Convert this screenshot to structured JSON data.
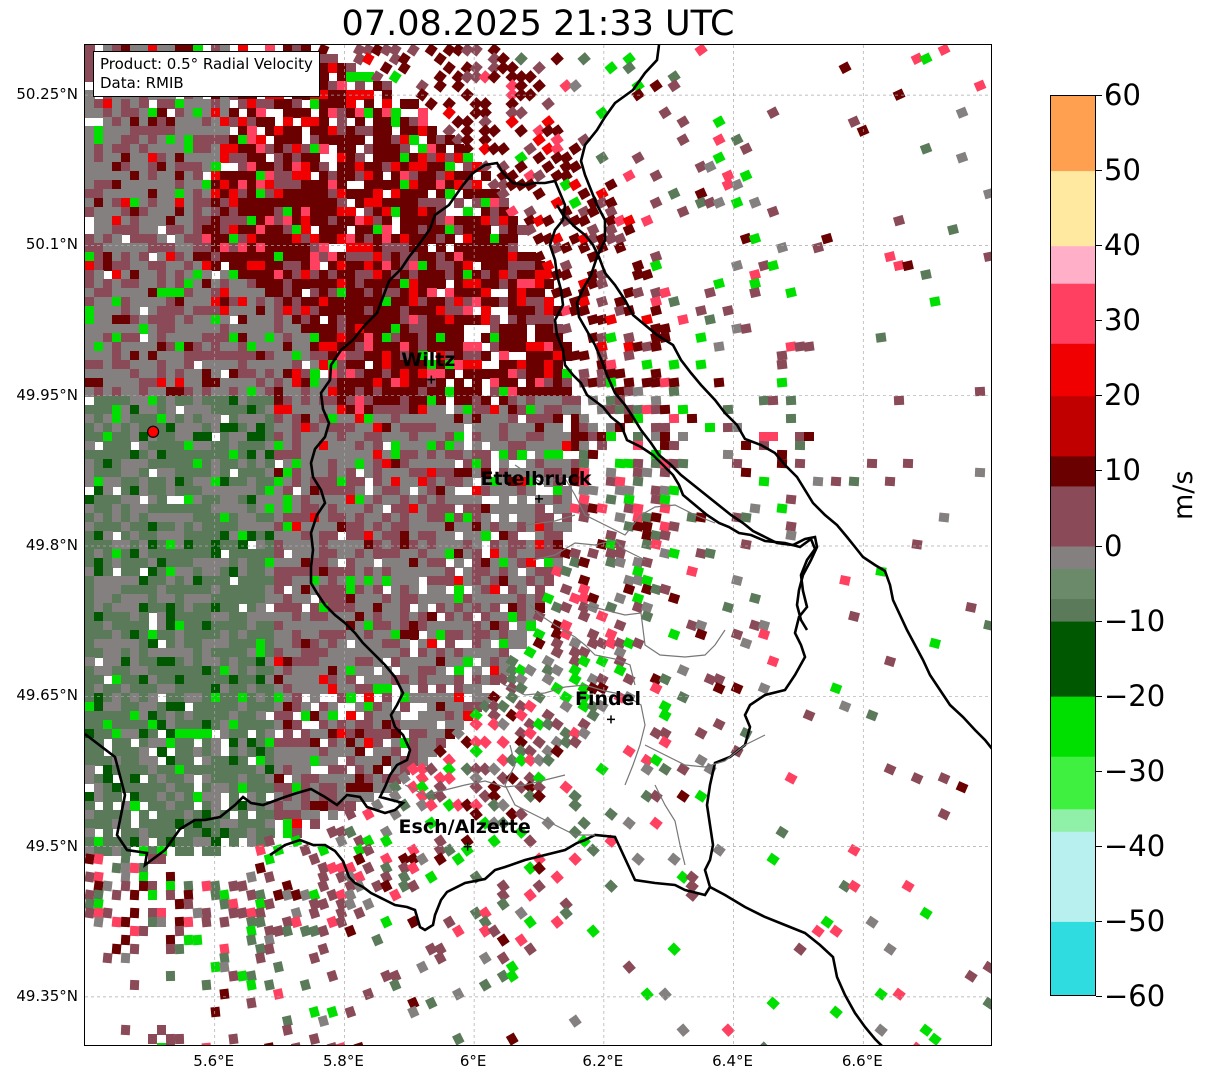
{
  "title": "07.08.2025 21:33 UTC",
  "info_box": {
    "product": "Product: 0.5° Radial Velocity",
    "data": "Data: RMIB"
  },
  "map": {
    "lon_range": [
      5.4,
      6.8
    ],
    "lat_range": [
      49.3,
      50.3
    ],
    "lat_ticks": [
      {
        "value": 50.25,
        "label": "50.25°N"
      },
      {
        "value": 50.1,
        "label": "50.1°N"
      },
      {
        "value": 49.95,
        "label": "49.95°N"
      },
      {
        "value": 49.8,
        "label": "49.8°N"
      },
      {
        "value": 49.65,
        "label": "49.65°N"
      },
      {
        "value": 49.5,
        "label": "49.5°N"
      },
      {
        "value": 49.35,
        "label": "49.35°N"
      }
    ],
    "lon_ticks": [
      {
        "value": 5.6,
        "label": "5.6°E"
      },
      {
        "value": 5.8,
        "label": "5.8°E"
      },
      {
        "value": 6.0,
        "label": "6°E"
      },
      {
        "value": 6.2,
        "label": "6.2°E"
      },
      {
        "value": 6.4,
        "label": "6.4°E"
      },
      {
        "value": 6.6,
        "label": "6.6°E"
      }
    ],
    "grid": true,
    "radar_site": {
      "lon": 5.505,
      "lat": 49.914
    },
    "cities": [
      {
        "name": "Wiltz",
        "lon": 5.934,
        "lat": 49.966
      },
      {
        "name": "Ettelbruck",
        "lon": 6.1,
        "lat": 49.847
      },
      {
        "name": "Findel",
        "lon": 6.211,
        "lat": 49.627
      },
      {
        "name": "Esch/Alzette",
        "lon": 5.99,
        "lat": 49.5
      }
    ]
  },
  "colorbar": {
    "unit": "m/s",
    "min": -60,
    "max": 60,
    "tick_labels": [
      "60",
      "50",
      "40",
      "30",
      "20",
      "10",
      "0",
      "−10",
      "−20",
      "−30",
      "−40",
      "−50",
      "−60"
    ],
    "colors": {
      "cyan_dark": "#1f7fc0",
      "cyan": "#2fdde0",
      "cyan_light": "#b8f0f0",
      "green_light": "#90f0a8",
      "green": "#00e000",
      "green_dark": "#005800",
      "gray_green": "#5a7a5a",
      "gray": "#858080",
      "gray_maroon": "#8a4a58",
      "maroon": "#6a0000",
      "red": "#f00000",
      "pink": "#ff4060",
      "pink_light": "#ffb0c8",
      "yellow_light": "#ffe8a0",
      "orange": "#ffa050"
    }
  }
}
